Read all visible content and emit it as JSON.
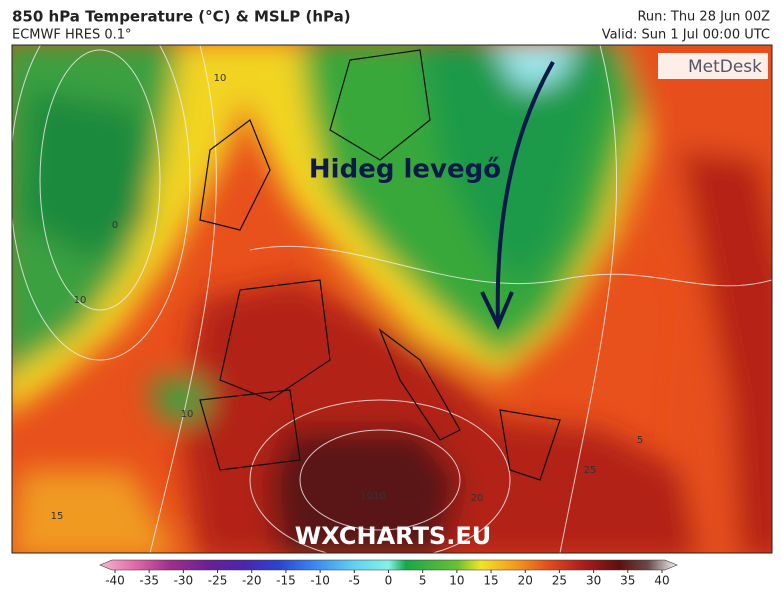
{
  "header": {
    "title": "850 hPa Temperature (°C) & MSLP (hPa)",
    "model": "ECMWF HRES 0.1°",
    "run": "Run: Thu 28 Jun 00Z",
    "valid": "Valid: Sun 1 Jul 00:00 UTC"
  },
  "map": {
    "annotation": "Hideg levegő",
    "watermark": "WXCHARTS.EU",
    "logo": "MetDesk",
    "contour_labels": [
      "10",
      "0",
      "10",
      "15",
      "20",
      "1010",
      "5",
      "25",
      "10"
    ]
  },
  "colorbar": {
    "lim": [
      -40,
      40
    ],
    "ticks": [
      -40,
      -35,
      -30,
      -25,
      -20,
      -15,
      -10,
      -5,
      0,
      5,
      10,
      15,
      20,
      25,
      30,
      35,
      40
    ]
  }
}
